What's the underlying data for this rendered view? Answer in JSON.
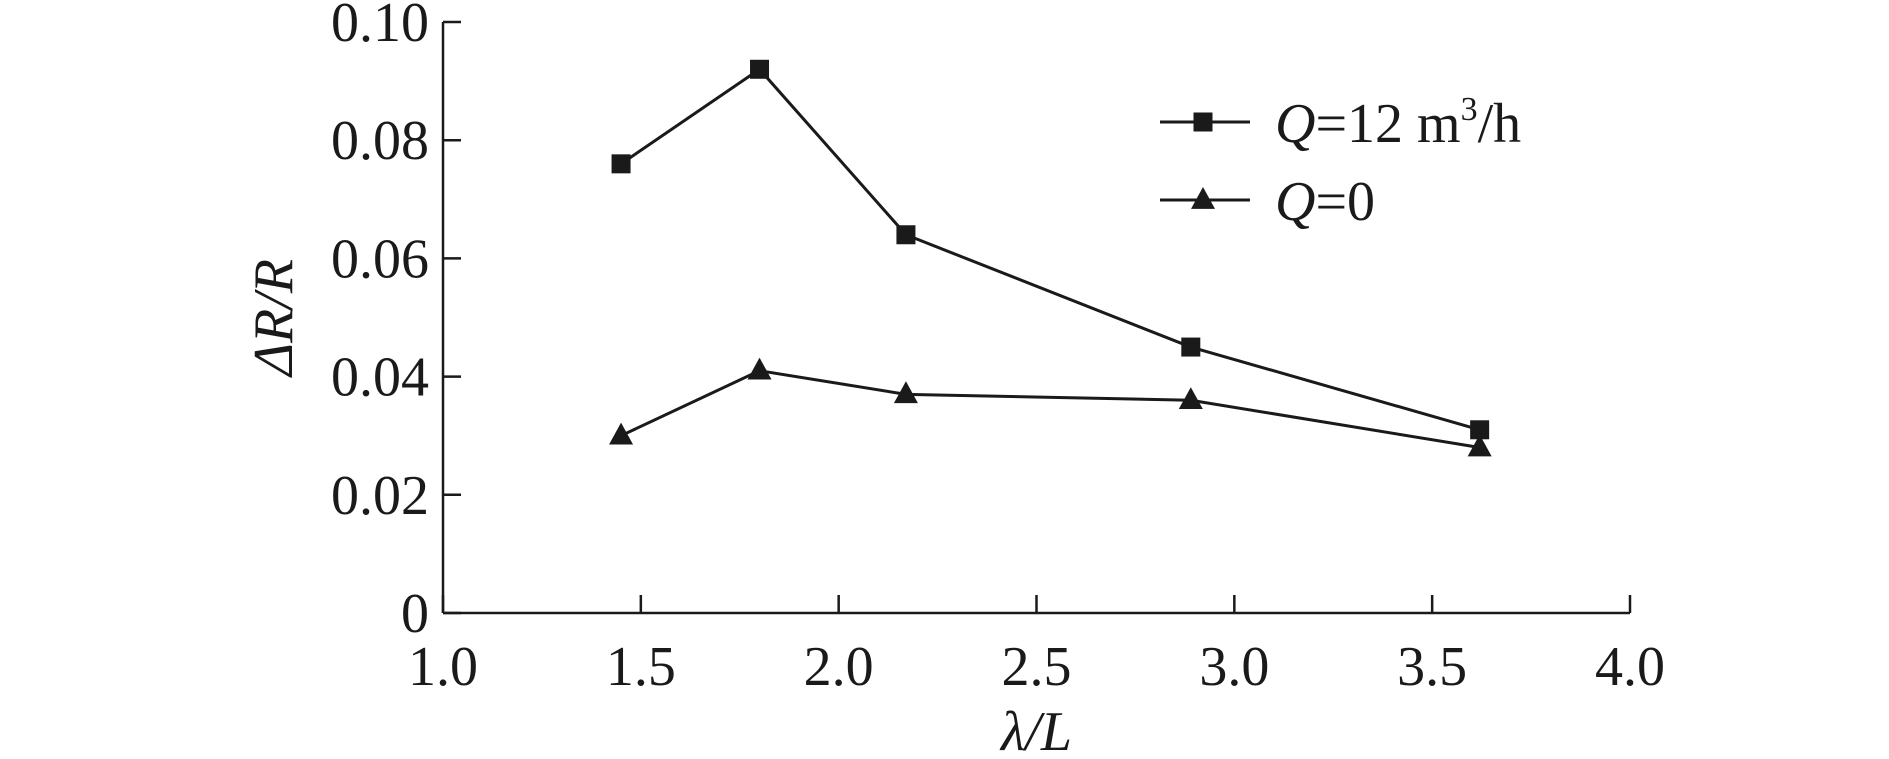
{
  "chart_data": {
    "type": "line",
    "xlabel": "λ/L",
    "ylabel": "ΔR/R",
    "xlim": [
      1.0,
      4.0
    ],
    "ylim": [
      0,
      0.1
    ],
    "x_ticks": [
      "1.0",
      "1.5",
      "2.0",
      "2.5",
      "3.0",
      "3.5",
      "4.0"
    ],
    "y_ticks": [
      "0",
      "0.02",
      "0.04",
      "0.06",
      "0.08",
      "0.10"
    ],
    "grid": false,
    "legend_position": "top-right",
    "series": [
      {
        "name": "Q=12 m³/h",
        "label_var": "Q",
        "label_rest": "=12 m",
        "label_sup": "3",
        "label_unit": "/h",
        "marker": "square",
        "x": [
          1.45,
          1.8,
          2.17,
          2.89,
          3.62
        ],
        "y": [
          0.076,
          0.092,
          0.064,
          0.045,
          0.031
        ]
      },
      {
        "name": "Q=0",
        "label_var": "Q",
        "label_rest": "=0",
        "marker": "triangle",
        "x": [
          1.45,
          1.8,
          2.17,
          2.89,
          3.62
        ],
        "y": [
          0.03,
          0.041,
          0.037,
          0.036,
          0.028
        ]
      }
    ]
  }
}
